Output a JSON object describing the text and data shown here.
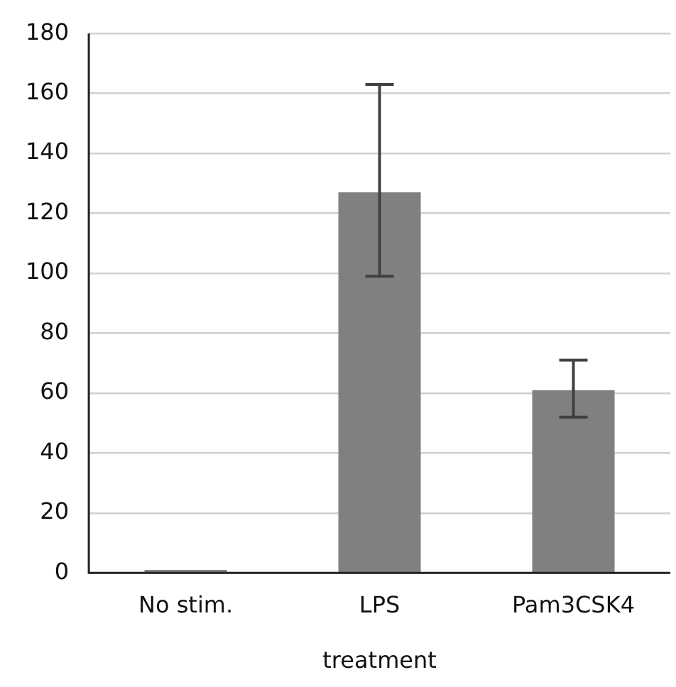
{
  "chart_data": {
    "type": "bar",
    "xlabel": "treatment",
    "categories": [
      "No stim.",
      "LPS",
      "Pam3CSK4"
    ],
    "series": [
      {
        "color": "#808080",
        "values": [
          1,
          127,
          61
        ],
        "errors": [
          null,
          [
            99,
            163
          ],
          [
            52,
            71
          ]
        ]
      }
    ],
    "ylim": [
      0,
      180
    ],
    "yticks": [
      0,
      20,
      40,
      60,
      80,
      100,
      120,
      140,
      160,
      180
    ],
    "grid": "y",
    "legend": false
  }
}
